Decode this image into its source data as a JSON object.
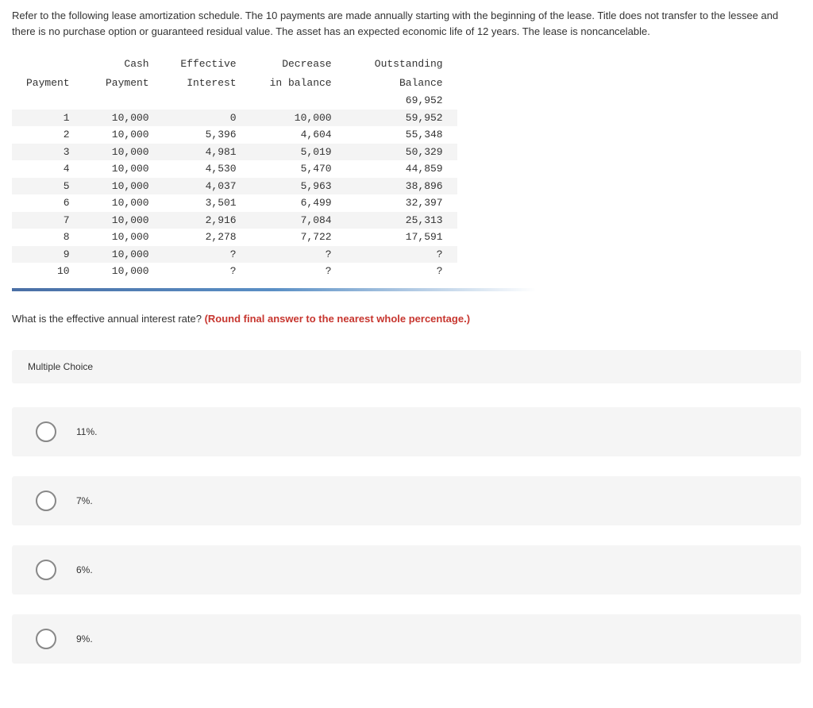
{
  "intro": "Refer to the following lease amortization schedule. The 10 payments are made annually starting with the beginning of the lease. Title does not transfer to the lessee and there is no purchase option or guaranteed residual value. The asset has an expected economic life of 12 years. The lease is noncancelable.",
  "table": {
    "headers": {
      "payment_l1": "",
      "payment_l2": "Payment",
      "cash_l1": "Cash",
      "cash_l2": "Payment",
      "interest_l1": "Effective",
      "interest_l2": "Interest",
      "decrease_l1": "Decrease",
      "decrease_l2": "in balance",
      "balance_l1": "Outstanding",
      "balance_l2": "Balance"
    },
    "initial_balance": "69,952",
    "rows": [
      {
        "n": "1",
        "cash": "10,000",
        "interest": "0",
        "decrease": "10,000",
        "balance": "59,952",
        "alt": true
      },
      {
        "n": "2",
        "cash": "10,000",
        "interest": "5,396",
        "decrease": "4,604",
        "balance": "55,348",
        "alt": false
      },
      {
        "n": "3",
        "cash": "10,000",
        "interest": "4,981",
        "decrease": "5,019",
        "balance": "50,329",
        "alt": true
      },
      {
        "n": "4",
        "cash": "10,000",
        "interest": "4,530",
        "decrease": "5,470",
        "balance": "44,859",
        "alt": false
      },
      {
        "n": "5",
        "cash": "10,000",
        "interest": "4,037",
        "decrease": "5,963",
        "balance": "38,896",
        "alt": true
      },
      {
        "n": "6",
        "cash": "10,000",
        "interest": "3,501",
        "decrease": "6,499",
        "balance": "32,397",
        "alt": false
      },
      {
        "n": "7",
        "cash": "10,000",
        "interest": "2,916",
        "decrease": "7,084",
        "balance": "25,313",
        "alt": true
      },
      {
        "n": "8",
        "cash": "10,000",
        "interest": "2,278",
        "decrease": "7,722",
        "balance": "17,591",
        "alt": false
      },
      {
        "n": "9",
        "cash": "10,000",
        "interest": "?",
        "decrease": "?",
        "balance": "?",
        "alt": true
      },
      {
        "n": "10",
        "cash": "10,000",
        "interest": "?",
        "decrease": "?",
        "balance": "?",
        "alt": false
      }
    ]
  },
  "question": {
    "text": "What is the effective annual interest rate? ",
    "highlight": "(Round final answer to the nearest whole percentage.)"
  },
  "mc": {
    "header": "Multiple Choice",
    "choices": [
      {
        "label": "11%."
      },
      {
        "label": "7%."
      },
      {
        "label": "6%."
      },
      {
        "label": "9%."
      }
    ]
  },
  "colors": {
    "text": "#333333",
    "highlight": "#c7362f",
    "alt_row": "#f4f4f4",
    "choice_bg": "#f5f5f5",
    "radio_border": "#888888"
  }
}
